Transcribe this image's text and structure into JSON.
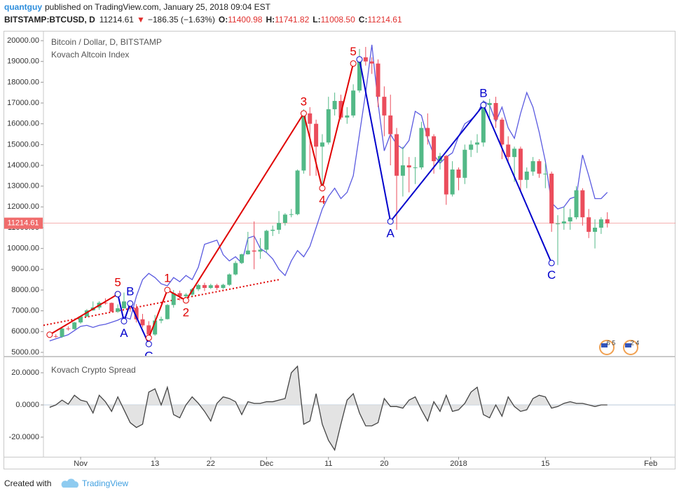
{
  "header": {
    "user": "quantguy",
    "published": "published on TradingView.com, January 25, 2018 09:04 EST",
    "symbol": "BITSTAMP:BTCUSD, D",
    "last": "11214.61",
    "arrow": "▼",
    "change": "−186.35 (−1.63%)",
    "ohlc": [
      {
        "label": "O:",
        "value": "11400.98"
      },
      {
        "label": "H:",
        "value": "11741.82"
      },
      {
        "label": "L:",
        "value": "11008.50"
      },
      {
        "label": "C:",
        "value": "11214.61"
      }
    ]
  },
  "events": [
    "6 5",
    "2 4"
  ],
  "footer": {
    "created": "Created with",
    "brand": "TradingView"
  },
  "chart_data": [
    {
      "type": "candlestick",
      "title": "Bitcoin / Dollar, D, BITSTAMP",
      "x": [
        "2017-10-27",
        "2017-10-28",
        "2017-10-29",
        "2017-10-30",
        "2017-10-31",
        "2017-11-01",
        "2017-11-02",
        "2017-11-03",
        "2017-11-04",
        "2017-11-05",
        "2017-11-06",
        "2017-11-07",
        "2017-11-08",
        "2017-11-09",
        "2017-11-10",
        "2017-11-11",
        "2017-11-12",
        "2017-11-13",
        "2017-11-14",
        "2017-11-15",
        "2017-11-16",
        "2017-11-17",
        "2017-11-18",
        "2017-11-19",
        "2017-11-20",
        "2017-11-21",
        "2017-11-22",
        "2017-11-23",
        "2017-11-24",
        "2017-11-25",
        "2017-11-26",
        "2017-11-27",
        "2017-11-28",
        "2017-11-29",
        "2017-11-30",
        "2017-12-01",
        "2017-12-02",
        "2017-12-03",
        "2017-12-04",
        "2017-12-05",
        "2017-12-06",
        "2017-12-07",
        "2017-12-08",
        "2017-12-09",
        "2017-12-10",
        "2017-12-11",
        "2017-12-12",
        "2017-12-13",
        "2017-12-14",
        "2017-12-15",
        "2017-12-16",
        "2017-12-17",
        "2017-12-18",
        "2017-12-19",
        "2017-12-20",
        "2017-12-21",
        "2017-12-22",
        "2017-12-23",
        "2017-12-24",
        "2017-12-25",
        "2017-12-26",
        "2017-12-27",
        "2017-12-28",
        "2017-12-29",
        "2017-12-30",
        "2017-12-31",
        "2018-01-01",
        "2018-01-02",
        "2018-01-03",
        "2018-01-04",
        "2018-01-05",
        "2018-01-06",
        "2018-01-07",
        "2018-01-08",
        "2018-01-09",
        "2018-01-10",
        "2018-01-11",
        "2018-01-12",
        "2018-01-13",
        "2018-01-14",
        "2018-01-15",
        "2018-01-16",
        "2018-01-17",
        "2018-01-18",
        "2018-01-19",
        "2018-01-20",
        "2018-01-21",
        "2018-01-22",
        "2018-01-23",
        "2018-01-24",
        "2018-01-25"
      ],
      "candles": {
        "up_color": "#53b987",
        "down_color": "#eb4d5c",
        "open": [
          5900,
          5780,
          5750,
          6150,
          6120,
          6440,
          6730,
          7020,
          7160,
          7390,
          7380,
          6960,
          7120,
          7450,
          7140,
          6590,
          6300,
          5860,
          6530,
          6600,
          7280,
          7850,
          7700,
          7780,
          8040,
          8240,
          8100,
          8230,
          8100,
          8250,
          8750,
          9300,
          9720,
          9900,
          9850,
          9940,
          10850,
          10900,
          11230,
          11630,
          11650,
          13750,
          16500,
          16000,
          14900,
          15100,
          16700,
          17100,
          16300,
          16400,
          17600,
          19200,
          19000,
          18900,
          17300,
          16400,
          15500,
          13500,
          14000,
          13900,
          13900,
          15800,
          15400,
          14200,
          14450,
          12600,
          13800,
          13400,
          14750,
          15000,
          15100,
          16900,
          17000,
          16200,
          15000,
          14400,
          14800,
          13300,
          13700,
          14200,
          13600,
          13600,
          11200,
          11200,
          11300,
          11500,
          12800,
          11500,
          10800,
          11000,
          11400.98
        ],
        "high": [
          5990,
          5870,
          6200,
          6250,
          6470,
          6770,
          7080,
          7450,
          7460,
          7600,
          7400,
          7310,
          7880,
          7480,
          7320,
          6850,
          6500,
          6800,
          6720,
          7320,
          8000,
          7970,
          7850,
          8100,
          8300,
          8350,
          8300,
          8300,
          8300,
          8800,
          9400,
          9750,
          10800,
          11300,
          10500,
          10900,
          11100,
          11800,
          11700,
          11900,
          13800,
          16700,
          16800,
          16200,
          15500,
          17300,
          17500,
          17400,
          16800,
          17900,
          19600,
          19700,
          19200,
          19100,
          17800,
          17400,
          15800,
          14900,
          14400,
          14400,
          16100,
          16500,
          15500,
          14600,
          14500,
          14200,
          13900,
          15000,
          15200,
          15500,
          17100,
          17200,
          17300,
          16300,
          15400,
          14900,
          14900,
          13900,
          14400,
          14300,
          14100,
          13700,
          11600,
          12000,
          11900,
          13000,
          12900,
          11900,
          11400,
          11500,
          11741.82
        ],
        "low": [
          5700,
          5700,
          5700,
          6050,
          6100,
          6380,
          6700,
          7000,
          7050,
          7300,
          6950,
          6900,
          7100,
          6950,
          6440,
          6200,
          5500,
          5800,
          6400,
          6580,
          7150,
          7500,
          7520,
          7700,
          7950,
          7950,
          8050,
          8000,
          8050,
          8200,
          8700,
          9250,
          9700,
          9000,
          9500,
          9800,
          10600,
          10700,
          11100,
          11500,
          11600,
          13600,
          13500,
          13500,
          12900,
          15000,
          16400,
          16200,
          16000,
          16300,
          17500,
          18800,
          18400,
          16800,
          15400,
          14000,
          10900,
          12500,
          12700,
          13100,
          13800,
          15000,
          13600,
          13800,
          12100,
          12500,
          12800,
          13100,
          14400,
          14600,
          14900,
          16300,
          15800,
          14300,
          14200,
          13200,
          12800,
          12900,
          13500,
          13400,
          12900,
          10800,
          9200,
          10900,
          10900,
          11400,
          11100,
          10500,
          10000,
          10700,
          11008.5
        ],
        "close": [
          5780,
          5750,
          6150,
          6120,
          6440,
          6730,
          7020,
          7160,
          7390,
          7380,
          6960,
          7120,
          7450,
          7140,
          6590,
          6300,
          5860,
          6530,
          6600,
          7280,
          7850,
          7700,
          7780,
          8040,
          8240,
          8100,
          8230,
          8100,
          8250,
          8750,
          9300,
          9720,
          9900,
          9850,
          9940,
          10850,
          10900,
          11230,
          11630,
          11650,
          13750,
          16500,
          16000,
          14900,
          15100,
          16700,
          17100,
          16300,
          16400,
          17600,
          19200,
          19000,
          18900,
          17300,
          16400,
          15500,
          13500,
          14000,
          13900,
          13900,
          15800,
          15400,
          14200,
          14450,
          12600,
          13800,
          13400,
          14750,
          15000,
          15100,
          16900,
          17000,
          16200,
          15000,
          14400,
          14800,
          13300,
          13700,
          14200,
          13600,
          13600,
          11200,
          11200,
          11300,
          11500,
          12800,
          11500,
          10800,
          11000,
          11400,
          11214.61
        ]
      },
      "series": [
        {
          "name": "Kovach Altcoin Index",
          "color": "#5a5ae0",
          "values": [
            5550,
            5650,
            5750,
            5850,
            6050,
            6250,
            6300,
            6200,
            6300,
            6350,
            6450,
            6550,
            6700,
            6600,
            7700,
            8500,
            8800,
            8600,
            8300,
            8200,
            8600,
            8400,
            8700,
            8500,
            9100,
            10200,
            10300,
            10400,
            9700,
            9400,
            9600,
            9300,
            10500,
            10600,
            10000,
            9800,
            9500,
            9000,
            8700,
            9400,
            9900,
            9600,
            10100,
            11000,
            11900,
            12500,
            12900,
            12400,
            12700,
            13500,
            15500,
            17500,
            19800,
            17000,
            14700,
            15500,
            15000,
            14800,
            15200,
            16600,
            16400,
            15300,
            14500,
            14100,
            14400,
            14600,
            15400,
            16000,
            16200,
            16500,
            17100,
            16900,
            16100,
            16800,
            15800,
            15300,
            16500,
            17500,
            16800,
            15600,
            14200,
            12200,
            11900,
            12000,
            12400,
            12500,
            14500,
            13500,
            12400,
            12400,
            12700
          ]
        }
      ],
      "waves": [
        {
          "color": "#e00000",
          "points": [
            {
              "x": "2017-10-27",
              "y": 5850
            },
            {
              "x": "2017-11-07",
              "y": 7800,
              "label": "5"
            }
          ]
        },
        {
          "color": "#0000cc",
          "points": [
            {
              "x": "2017-11-07",
              "y": 7800
            },
            {
              "x": "2017-11-08",
              "y": 6500,
              "label": "A"
            },
            {
              "x": "2017-11-09",
              "y": 7350,
              "label": "B"
            },
            {
              "x": "2017-11-12",
              "y": 5400,
              "label": "C"
            }
          ]
        },
        {
          "color": "#e00000",
          "points": [
            {
              "x": "2017-11-12",
              "y": 5700
            },
            {
              "x": "2017-11-15",
              "y": 8000,
              "label": "1"
            },
            {
              "x": "2017-11-18",
              "y": 7500,
              "label": "2"
            },
            {
              "x": "2017-12-07",
              "y": 16500,
              "label": "3"
            },
            {
              "x": "2017-12-10",
              "y": 12900,
              "label": "4"
            },
            {
              "x": "2017-12-15",
              "y": 18900,
              "label": "5"
            }
          ]
        },
        {
          "color": "#0000cc",
          "points": [
            {
              "x": "2017-12-16",
              "y": 19100
            },
            {
              "x": "2017-12-21",
              "y": 11300,
              "label": "A"
            },
            {
              "x": "2018-01-05",
              "y": 16900,
              "label": "B"
            },
            {
              "x": "2018-01-16",
              "y": 9300,
              "label": "C"
            }
          ]
        }
      ],
      "trendline": {
        "color": "#e00000",
        "points": [
          {
            "x": "2017-10-26",
            "y": 6300
          },
          {
            "x": "2017-12-03",
            "y": 8500
          }
        ]
      },
      "xlim": [
        "2017-10-26",
        "2018-02-05"
      ],
      "xticks": [
        {
          "value": "2017-11-01",
          "label": "Nov"
        },
        {
          "value": "2017-11-13",
          "label": "13"
        },
        {
          "value": "2017-11-22",
          "label": "22"
        },
        {
          "value": "2017-12-01",
          "label": "Dec"
        },
        {
          "value": "2017-12-11",
          "label": "11"
        },
        {
          "value": "2017-12-20",
          "label": "20"
        },
        {
          "value": "2018-01-01",
          "label": "2018"
        },
        {
          "value": "2018-01-15",
          "label": "15"
        },
        {
          "value": "2018-02-01",
          "label": "Feb"
        }
      ],
      "ylim": [
        4830,
        20440
      ],
      "yticks": [
        {
          "value": 5000,
          "label": "5000.00"
        },
        {
          "value": 6000,
          "label": "6000.00"
        },
        {
          "value": 7000,
          "label": "7000.00"
        },
        {
          "value": 8000,
          "label": "8000.00"
        },
        {
          "value": 9000,
          "label": "9000.00"
        },
        {
          "value": 10000,
          "label": "10000.00"
        },
        {
          "value": 11000,
          "label": "11000.00"
        },
        {
          "value": 12000,
          "label": "12000.00"
        },
        {
          "value": 13000,
          "label": "13000.00"
        },
        {
          "value": 14000,
          "label": "14000.00"
        },
        {
          "value": 15000,
          "label": "15000.00"
        },
        {
          "value": 16000,
          "label": "16000.00"
        },
        {
          "value": 17000,
          "label": "17000.00"
        },
        {
          "value": 18000,
          "label": "18000.00"
        },
        {
          "value": 19000,
          "label": "19000.00"
        },
        {
          "value": 20000,
          "label": "20000.00"
        }
      ],
      "last_price_color": "#f06c6c"
    },
    {
      "type": "area",
      "title": "Kovach Crypto Spread",
      "color": "#444444",
      "fill": "#dcdcdc",
      "values": [
        -1.5,
        0,
        3,
        0.5,
        6,
        3,
        2,
        -5,
        6,
        2,
        -4,
        5,
        -3,
        -11,
        -14,
        -12,
        8,
        10,
        0,
        11,
        -6,
        -8,
        0,
        5,
        1,
        -4,
        -10,
        1,
        5,
        4,
        2,
        -6,
        2,
        1,
        1,
        2,
        2,
        3,
        4,
        20,
        24,
        -12,
        -10,
        7,
        -12,
        -22,
        -28,
        -12,
        3,
        7,
        -5,
        -13,
        -13,
        -11,
        4,
        -1,
        -1,
        -2,
        3,
        5,
        -3,
        -10,
        2,
        -4,
        6,
        -4,
        -3,
        1,
        8,
        11,
        -6,
        -8,
        0,
        -7,
        5,
        -1,
        -4,
        -3,
        4,
        6,
        5,
        -2,
        -1,
        1,
        2,
        1,
        1,
        0,
        -1,
        0,
        0
      ],
      "ylim": [
        -32.2,
        29.6
      ],
      "yticks": [
        {
          "value": 20,
          "label": "20.0000"
        },
        {
          "value": 0,
          "label": "0.0000"
        },
        {
          "value": -20,
          "label": "-20.0000"
        }
      ]
    }
  ]
}
